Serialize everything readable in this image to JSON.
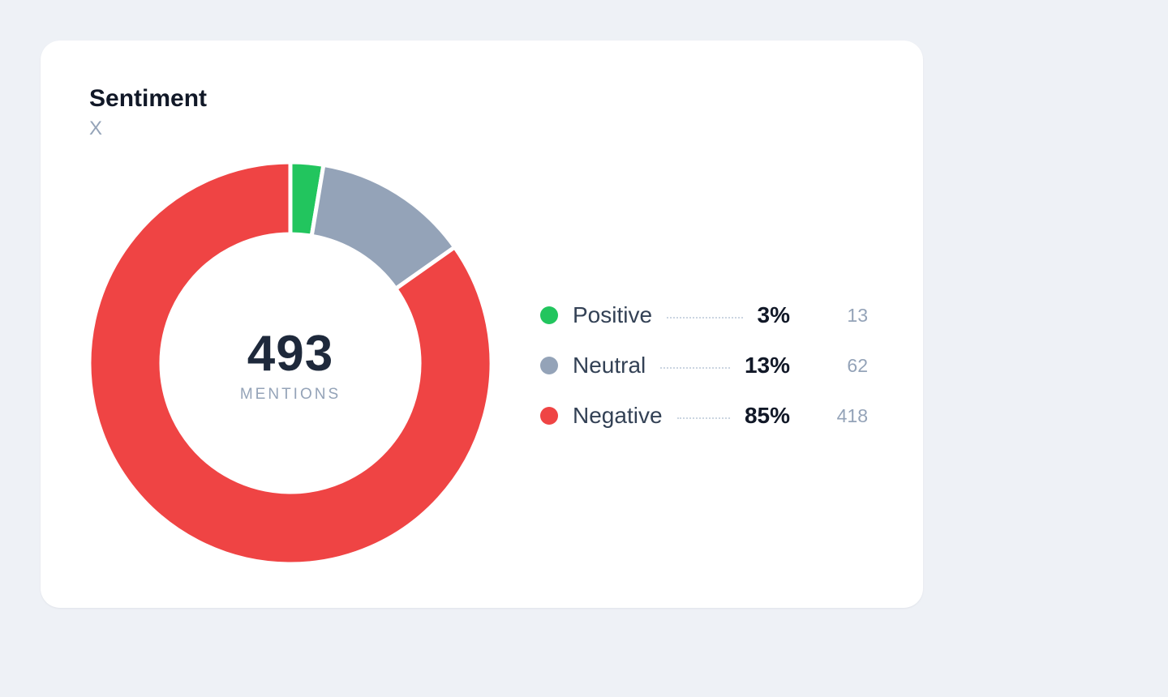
{
  "card": {
    "title": "Sentiment",
    "subtitle": "X"
  },
  "center": {
    "value": "493",
    "label": "MENTIONS"
  },
  "legend": [
    {
      "name": "Positive",
      "pct": "3%",
      "count": "13"
    },
    {
      "name": "Neutral",
      "pct": "13%",
      "count": "62"
    },
    {
      "name": "Negative",
      "pct": "85%",
      "count": "418"
    }
  ],
  "colors": {
    "positive": "#22c55e",
    "neutral": "#94a3b8",
    "negative": "#ef4444"
  },
  "chart_data": {
    "type": "pie",
    "categories": [
      "Positive",
      "Neutral",
      "Negative"
    ],
    "values": [
      13,
      62,
      418
    ],
    "colors": [
      "#22c55e",
      "#94a3b8",
      "#ef4444"
    ],
    "total": 493,
    "title": "Sentiment",
    "subtitle": "X",
    "legend": "right"
  }
}
